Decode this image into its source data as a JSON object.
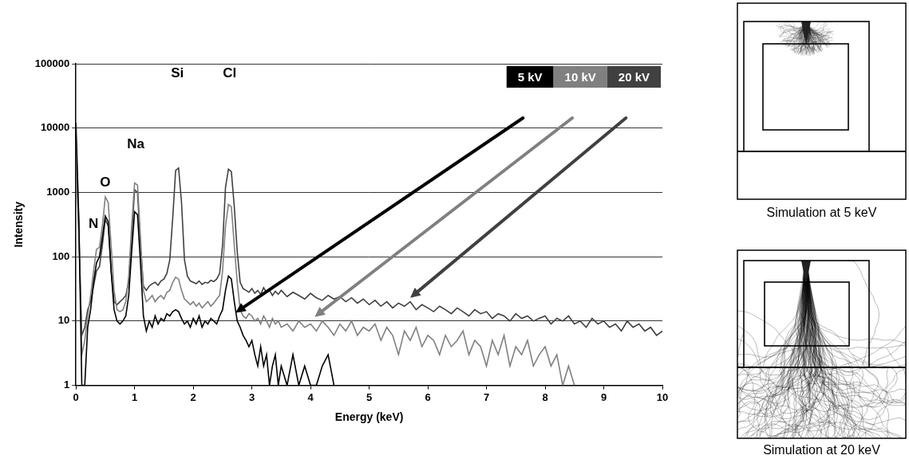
{
  "chart_data": {
    "type": "line",
    "x_label": "Energy (keV)",
    "y_label": "Intensity",
    "x": [
      0,
      0.05,
      0.1,
      0.15,
      0.2,
      0.25,
      0.3,
      0.35,
      0.4,
      0.45,
      0.5,
      0.55,
      0.6,
      0.65,
      0.7,
      0.75,
      0.8,
      0.85,
      0.9,
      0.95,
      1,
      1.05,
      1.1,
      1.15,
      1.2,
      1.25,
      1.3,
      1.35,
      1.4,
      1.45,
      1.5,
      1.55,
      1.6,
      1.65,
      1.7,
      1.75,
      1.8,
      1.85,
      1.9,
      1.95,
      2,
      2.05,
      2.1,
      2.15,
      2.2,
      2.25,
      2.3,
      2.35,
      2.4,
      2.45,
      2.5,
      2.55,
      2.6,
      2.65,
      2.7,
      2.75,
      2.8,
      2.85,
      2.9,
      2.95,
      3,
      3.05,
      3.1,
      3.15,
      3.2,
      3.25,
      3.3,
      3.35,
      3.4,
      3.45,
      3.5,
      3.6,
      3.7,
      3.8,
      3.9,
      4,
      4.1,
      4.2,
      4.3,
      4.4,
      4.5,
      4.6,
      4.7,
      4.8,
      4.9,
      5,
      5.1,
      5.2,
      5.3,
      5.4,
      5.5,
      5.6,
      5.7,
      5.8,
      5.9,
      6,
      6.1,
      6.2,
      6.3,
      6.4,
      6.5,
      6.6,
      6.7,
      6.8,
      6.9,
      7,
      7.1,
      7.2,
      7.3,
      7.4,
      7.5,
      7.6,
      7.7,
      7.8,
      7.9,
      8,
      8.1,
      8.2,
      8.3,
      8.4,
      8.5,
      8.6,
      8.7,
      8.8,
      8.9,
      9,
      9.1,
      9.2,
      9.3,
      9.4,
      9.5,
      9.6,
      9.7,
      9.8,
      9.9,
      10
    ],
    "series": [
      {
        "name": "5 kV",
        "color": "#000000",
        "values": [
          12000,
          350,
          1,
          1,
          8,
          15,
          40,
          80,
          100,
          200,
          430,
          350,
          60,
          15,
          10,
          9,
          10,
          12,
          25,
          120,
          500,
          450,
          80,
          12,
          7,
          10,
          8,
          12,
          9,
          11,
          10,
          13,
          12,
          14,
          15,
          14,
          11,
          9,
          10,
          8,
          11,
          9,
          12,
          8,
          10,
          9,
          11,
          10,
          9,
          12,
          15,
          30,
          50,
          45,
          20,
          10,
          8,
          6,
          5,
          4,
          5,
          3,
          2,
          4,
          2,
          3,
          1,
          2,
          3,
          1,
          2,
          1,
          3,
          1,
          2,
          1,
          1,
          2,
          3,
          1,
          null,
          null,
          null,
          null,
          null,
          null,
          null,
          null,
          null,
          null,
          null,
          null,
          null,
          null,
          null,
          null,
          null,
          null,
          null,
          null,
          null,
          null,
          null,
          null,
          null,
          null,
          null,
          null,
          null,
          null,
          null,
          null,
          null,
          null,
          null,
          null,
          null,
          null,
          null,
          null,
          null,
          null,
          null,
          null,
          null,
          null,
          null,
          null,
          null,
          null,
          null,
          null,
          null,
          null,
          null,
          null
        ]
      },
      {
        "name": "10 kV",
        "color": "#808080",
        "values": [
          8000,
          300,
          3,
          5,
          12,
          25,
          60,
          130,
          140,
          300,
          850,
          700,
          150,
          30,
          15,
          14,
          15,
          20,
          50,
          300,
          1400,
          1300,
          200,
          30,
          20,
          22,
          25,
          20,
          23,
          25,
          22,
          28,
          30,
          40,
          48,
          45,
          30,
          22,
          20,
          18,
          20,
          17,
          19,
          16,
          18,
          20,
          17,
          19,
          22,
          25,
          60,
          300,
          650,
          600,
          150,
          40,
          15,
          12,
          11,
          13,
          12,
          10,
          11,
          9,
          12,
          10,
          8,
          11,
          9,
          10,
          8,
          9,
          7,
          10,
          8,
          9,
          7,
          10,
          8,
          6,
          9,
          7,
          10,
          6,
          8,
          7,
          9,
          5,
          8,
          6,
          3,
          7,
          5,
          8,
          4,
          6,
          5,
          3,
          6,
          4,
          5,
          7,
          3,
          5,
          4,
          2,
          5,
          3,
          6,
          2,
          4,
          3,
          5,
          2,
          3,
          4,
          2,
          3,
          1,
          2,
          1,
          null,
          null,
          null,
          null,
          null,
          null,
          null,
          null,
          null,
          null,
          null,
          null,
          null,
          null,
          null
        ]
      },
      {
        "name": "20 kV",
        "color": "#404040",
        "values": [
          5000,
          200,
          6,
          8,
          15,
          20,
          35,
          60,
          70,
          150,
          380,
          300,
          60,
          20,
          18,
          20,
          22,
          25,
          40,
          200,
          1100,
          1000,
          150,
          35,
          30,
          35,
          38,
          40,
          36,
          42,
          45,
          55,
          90,
          400,
          2200,
          2400,
          700,
          90,
          50,
          42,
          40,
          38,
          42,
          37,
          40,
          39,
          43,
          41,
          45,
          55,
          150,
          1200,
          2300,
          2100,
          600,
          120,
          40,
          32,
          30,
          28,
          32,
          27,
          30,
          26,
          33,
          28,
          30,
          25,
          29,
          26,
          30,
          24,
          28,
          25,
          22,
          27,
          23,
          21,
          25,
          22,
          24,
          20,
          23,
          19,
          22,
          18,
          21,
          17,
          20,
          16,
          19,
          17,
          20,
          15,
          18,
          16,
          14,
          17,
          15,
          13,
          16,
          14,
          12,
          15,
          13,
          14,
          11,
          13,
          12,
          10,
          13,
          11,
          12,
          10,
          11,
          12,
          9,
          11,
          10,
          12,
          9,
          10,
          8,
          11,
          9,
          10,
          8,
          9,
          7,
          10,
          8,
          9,
          7,
          8,
          6,
          7
        ]
      }
    ],
    "xlim": [
      0,
      10
    ],
    "xticks": [
      0,
      1,
      2,
      3,
      4,
      5,
      6,
      7,
      8,
      9,
      10
    ],
    "ylim": [
      1,
      100000
    ],
    "yticks": [
      1,
      10,
      100,
      1000,
      10000,
      100000
    ],
    "log": "y",
    "grid": true,
    "legend": "top right",
    "annotations": [
      {
        "text": "N",
        "x": 0.3,
        "y": 320
      },
      {
        "text": "O",
        "x": 0.5,
        "y": 1400
      },
      {
        "text": "Na",
        "x": 1.02,
        "y": 5500
      },
      {
        "text": "Si",
        "x": 1.73,
        "y": 70000
      },
      {
        "text": "Cl",
        "x": 2.62,
        "y": 70000
      }
    ]
  },
  "panels": [
    {
      "caption": "Simulation at 5 keV"
    },
    {
      "caption": "Simulation at 20 keV"
    }
  ]
}
